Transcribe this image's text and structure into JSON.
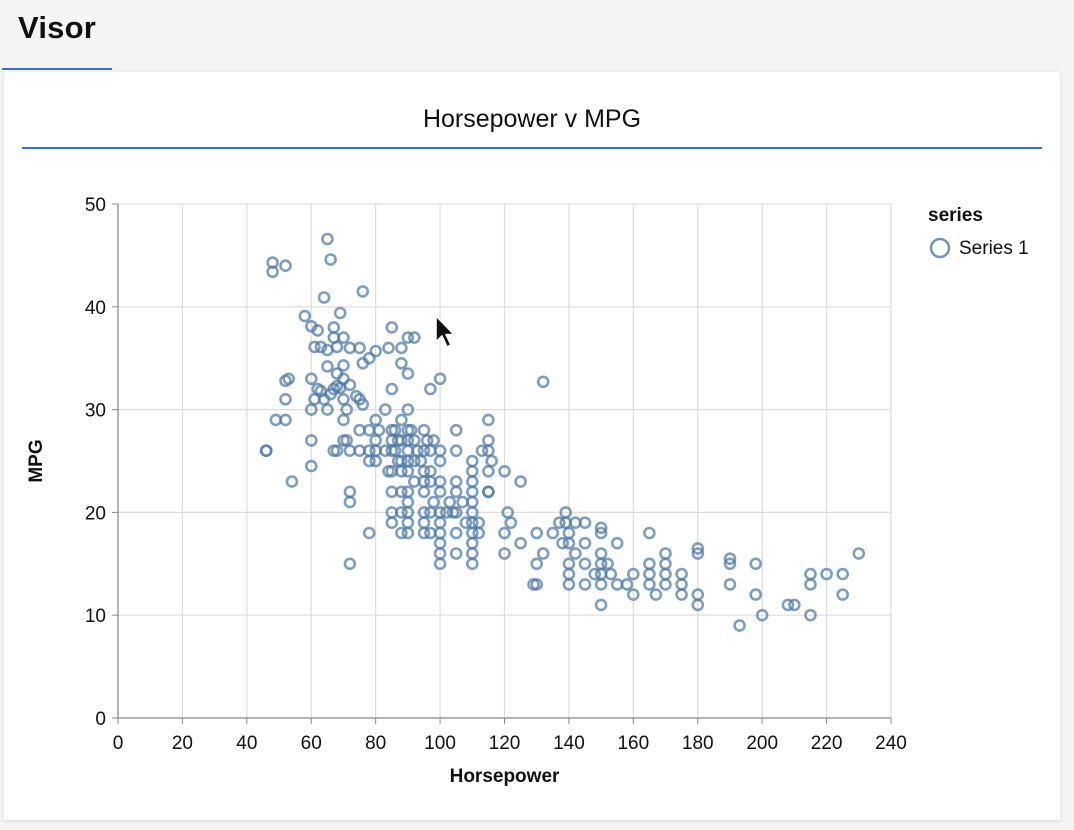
{
  "app": {
    "title": "Visor"
  },
  "panel": {
    "title": "Horsepower v MPG"
  },
  "colors": {
    "accent": "#3b72c8",
    "point_stroke": "#4c78a8",
    "grid": "#dddddd",
    "axis": "#888888"
  },
  "chart_data": {
    "type": "scatter",
    "title": "Horsepower v MPG",
    "xlabel": "Horsepower",
    "ylabel": "MPG",
    "xlim": [
      0,
      240
    ],
    "ylim": [
      0,
      50
    ],
    "xticks": [
      "0",
      "20",
      "40",
      "60",
      "80",
      "100",
      "120",
      "140",
      "160",
      "180",
      "200",
      "220",
      "240"
    ],
    "yticks": [
      "0",
      "10",
      "20",
      "30",
      "40",
      "50"
    ],
    "grid": true,
    "marker": "open-circle",
    "legend": {
      "title": "series",
      "position": "top-right",
      "entries": [
        "Series 1"
      ]
    },
    "series": [
      {
        "name": "Series 1",
        "points": [
          [
            46,
            26
          ],
          [
            46,
            26
          ],
          [
            48,
            44.3
          ],
          [
            48,
            43.4
          ],
          [
            52,
            44
          ],
          [
            49,
            29
          ],
          [
            52,
            29
          ],
          [
            52,
            31
          ],
          [
            53,
            33
          ],
          [
            52,
            32.8
          ],
          [
            54,
            23
          ],
          [
            58,
            39.1
          ],
          [
            60,
            38.1
          ],
          [
            62,
            37.7
          ],
          [
            64,
            40.9
          ],
          [
            65,
            46.6
          ],
          [
            66,
            44.6
          ],
          [
            67,
            38
          ],
          [
            61,
            36.1
          ],
          [
            63,
            36.1
          ],
          [
            65,
            35.8
          ],
          [
            65,
            34.2
          ],
          [
            60,
            33
          ],
          [
            62,
            32
          ],
          [
            64,
            31
          ],
          [
            65,
            30
          ],
          [
            66,
            31.5
          ],
          [
            67,
            32
          ],
          [
            68,
            32.3
          ],
          [
            68,
            33.5
          ],
          [
            69,
            32.1
          ],
          [
            70,
            31
          ],
          [
            70,
            29
          ],
          [
            70,
            34.3
          ],
          [
            71,
            30
          ],
          [
            72,
            32.4
          ],
          [
            72,
            36
          ],
          [
            75,
            36
          ],
          [
            76,
            41.5
          ],
          [
            69,
            39.4
          ],
          [
            70,
            37
          ],
          [
            60,
            30
          ],
          [
            61,
            31
          ],
          [
            60,
            27
          ],
          [
            60,
            24.5
          ],
          [
            63,
            31.8
          ],
          [
            67,
            37
          ],
          [
            68,
            36.1
          ],
          [
            70,
            33
          ],
          [
            74,
            31.3
          ],
          [
            75,
            31
          ],
          [
            76,
            30.5
          ],
          [
            76,
            34.5
          ],
          [
            78,
            35
          ],
          [
            80,
            35.7
          ],
          [
            84,
            36
          ],
          [
            85,
            38
          ],
          [
            88,
            36
          ],
          [
            90,
            37
          ],
          [
            92,
            37
          ],
          [
            88,
            34.5
          ],
          [
            90,
            33.5
          ],
          [
            97,
            32
          ],
          [
            100,
            33
          ],
          [
            132,
            32.7
          ],
          [
            67,
            26
          ],
          [
            68,
            26
          ],
          [
            70,
            27
          ],
          [
            71,
            27
          ],
          [
            72,
            26
          ],
          [
            72,
            22
          ],
          [
            72,
            21
          ],
          [
            72,
            15
          ],
          [
            75,
            28
          ],
          [
            75,
            26
          ],
          [
            78,
            28
          ],
          [
            78,
            26
          ],
          [
            78,
            25
          ],
          [
            78,
            18
          ],
          [
            80,
            29
          ],
          [
            80,
            27
          ],
          [
            80,
            26
          ],
          [
            80,
            25
          ],
          [
            81,
            28
          ],
          [
            83,
            30
          ],
          [
            83,
            26
          ],
          [
            84,
            24
          ],
          [
            85,
            32
          ],
          [
            85,
            28
          ],
          [
            85,
            27
          ],
          [
            85,
            26
          ],
          [
            85,
            24
          ],
          [
            85,
            22
          ],
          [
            85,
            20
          ],
          [
            85,
            19
          ],
          [
            86,
            28
          ],
          [
            86,
            26
          ],
          [
            87,
            27
          ],
          [
            87,
            25
          ],
          [
            88,
            29
          ],
          [
            88,
            27
          ],
          [
            88,
            25
          ],
          [
            88,
            24
          ],
          [
            88,
            22
          ],
          [
            88,
            20
          ],
          [
            88,
            18
          ],
          [
            90,
            28
          ],
          [
            90,
            27
          ],
          [
            90,
            26
          ],
          [
            90,
            25
          ],
          [
            90,
            24
          ],
          [
            90,
            22
          ],
          [
            90,
            21
          ],
          [
            90,
            20
          ],
          [
            90,
            19
          ],
          [
            90,
            18
          ],
          [
            90,
            30
          ],
          [
            91,
            28
          ],
          [
            92,
            27
          ],
          [
            92,
            25
          ],
          [
            92,
            23
          ],
          [
            93,
            26
          ],
          [
            94,
            25
          ],
          [
            95,
            28
          ],
          [
            95,
            26
          ],
          [
            95,
            24
          ],
          [
            95,
            23
          ],
          [
            95,
            22
          ],
          [
            95,
            20
          ],
          [
            95,
            19
          ],
          [
            95,
            18
          ],
          [
            96,
            27
          ],
          [
            97,
            26
          ],
          [
            97,
            24
          ],
          [
            97,
            23
          ],
          [
            97,
            20
          ],
          [
            97,
            18
          ],
          [
            98,
            27
          ],
          [
            98,
            21
          ],
          [
            100,
            26
          ],
          [
            100,
            25
          ],
          [
            100,
            23
          ],
          [
            100,
            22
          ],
          [
            100,
            20
          ],
          [
            100,
            19
          ],
          [
            100,
            18
          ],
          [
            100,
            17
          ],
          [
            100,
            16
          ],
          [
            100,
            15
          ],
          [
            102,
            20
          ],
          [
            103,
            21
          ],
          [
            104,
            20
          ],
          [
            105,
            28
          ],
          [
            105,
            26
          ],
          [
            105,
            23
          ],
          [
            105,
            22
          ],
          [
            105,
            20
          ],
          [
            105,
            18
          ],
          [
            105,
            16
          ],
          [
            107,
            21
          ],
          [
            108,
            19
          ],
          [
            110,
            25
          ],
          [
            110,
            24
          ],
          [
            110,
            23
          ],
          [
            110,
            22
          ],
          [
            110,
            21
          ],
          [
            110,
            20
          ],
          [
            110,
            19
          ],
          [
            110,
            18
          ],
          [
            110,
            17
          ],
          [
            110,
            16
          ],
          [
            110,
            15
          ],
          [
            112,
            19
          ],
          [
            112,
            18
          ],
          [
            113,
            26
          ],
          [
            115,
            29
          ],
          [
            115,
            27
          ],
          [
            115,
            26
          ],
          [
            115,
            24
          ],
          [
            115,
            22
          ],
          [
            115,
            22
          ],
          [
            116,
            25
          ],
          [
            120,
            24
          ],
          [
            120,
            18
          ],
          [
            120,
            16
          ],
          [
            121,
            20
          ],
          [
            122,
            19
          ],
          [
            125,
            23
          ],
          [
            125,
            17
          ],
          [
            129,
            13
          ],
          [
            130,
            13
          ],
          [
            130,
            18
          ],
          [
            130,
            15
          ],
          [
            132,
            16
          ],
          [
            135,
            18
          ],
          [
            137,
            19
          ],
          [
            138,
            17
          ],
          [
            139,
            20
          ],
          [
            139,
            19
          ],
          [
            140,
            18
          ],
          [
            140,
            17
          ],
          [
            140,
            15
          ],
          [
            140,
            14
          ],
          [
            140,
            13
          ],
          [
            142,
            19
          ],
          [
            142,
            16
          ],
          [
            145,
            19
          ],
          [
            145,
            17
          ],
          [
            145,
            15
          ],
          [
            145,
            13
          ],
          [
            148,
            14
          ],
          [
            150,
            18.5
          ],
          [
            150,
            18
          ],
          [
            150,
            16
          ],
          [
            150,
            15
          ],
          [
            150,
            14
          ],
          [
            150,
            13
          ],
          [
            150,
            11
          ],
          [
            152,
            15
          ],
          [
            153,
            14
          ],
          [
            155,
            17
          ],
          [
            155,
            13
          ],
          [
            158,
            13
          ],
          [
            160,
            14
          ],
          [
            160,
            12
          ],
          [
            165,
            18
          ],
          [
            165,
            15
          ],
          [
            165,
            14
          ],
          [
            165,
            13
          ],
          [
            167,
            12
          ],
          [
            170,
            16
          ],
          [
            170,
            15
          ],
          [
            170,
            14
          ],
          [
            170,
            13
          ],
          [
            175,
            14
          ],
          [
            175,
            13
          ],
          [
            175,
            12
          ],
          [
            180,
            16.5
          ],
          [
            180,
            16
          ],
          [
            180,
            12
          ],
          [
            180,
            11
          ],
          [
            190,
            15.5
          ],
          [
            190,
            15
          ],
          [
            190,
            13
          ],
          [
            193,
            9
          ],
          [
            198,
            15
          ],
          [
            198,
            12
          ],
          [
            200,
            10
          ],
          [
            208,
            11
          ],
          [
            210,
            11
          ],
          [
            215,
            14
          ],
          [
            215,
            13
          ],
          [
            215,
            10
          ],
          [
            220,
            14
          ],
          [
            225,
            14
          ],
          [
            225,
            12
          ],
          [
            230,
            16
          ]
        ]
      }
    ]
  }
}
